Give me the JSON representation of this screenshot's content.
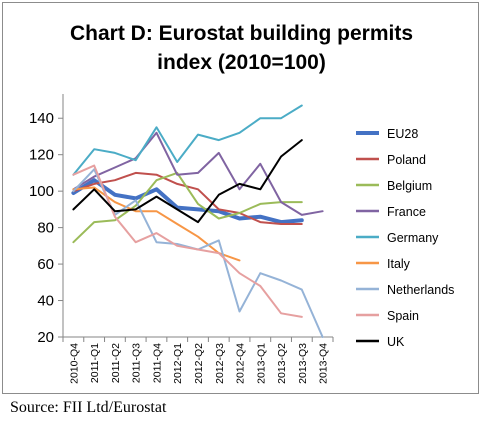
{
  "chart_data": {
    "type": "line",
    "title": "Chart D: Eurostat building permits",
    "subtitle": "index (2010=100)",
    "xlabel": "",
    "ylabel": "",
    "ylim": [
      20,
      150
    ],
    "yticks": [
      20,
      40,
      60,
      80,
      100,
      120,
      140
    ],
    "grid": false,
    "legend_position": "right",
    "x": [
      "2010-Q4",
      "2011-Q1",
      "2011-Q2",
      "2011-Q3",
      "2011-Q4",
      "2012-Q1",
      "2012-Q2",
      "2012-Q3",
      "2012-Q4",
      "2013-Q1",
      "2013-Q2",
      "2013-Q3",
      "2013-Q4"
    ],
    "series": [
      {
        "name": "EU28",
        "color": "#4472c4",
        "width": 4,
        "values": [
          99,
          106,
          98,
          96,
          101,
          91,
          90,
          89,
          85,
          86,
          83,
          84,
          null
        ]
      },
      {
        "name": "Poland",
        "color": "#c0504d",
        "width": 2,
        "values": [
          100,
          104,
          106,
          110,
          109,
          104,
          101,
          90,
          88,
          83,
          82,
          82,
          null
        ]
      },
      {
        "name": "Belgium",
        "color": "#9bbb59",
        "width": 2,
        "values": [
          72,
          83,
          84,
          92,
          106,
          110,
          93,
          85,
          88,
          93,
          94,
          94,
          null
        ]
      },
      {
        "name": "France",
        "color": "#8064a2",
        "width": 2,
        "values": [
          101,
          108,
          113,
          118,
          132,
          109,
          110,
          121,
          101,
          115,
          94,
          87,
          89
        ]
      },
      {
        "name": "Germany",
        "color": "#4bacc6",
        "width": 2,
        "values": [
          109,
          123,
          121,
          117,
          135,
          116,
          131,
          128,
          132,
          140,
          140,
          147,
          null
        ]
      },
      {
        "name": "Italy",
        "color": "#f79646",
        "width": 2,
        "values": [
          101,
          102,
          94,
          89,
          89,
          82,
          75,
          66,
          62,
          null,
          null,
          null,
          null
        ]
      },
      {
        "name": "Netherlands",
        "color": "#95b3d7",
        "width": 2,
        "values": [
          100,
          112,
          87,
          95,
          72,
          71,
          68,
          73,
          34,
          55,
          51,
          46,
          20
        ]
      },
      {
        "name": "Spain",
        "color": "#e6a0a0",
        "width": 2,
        "values": [
          109,
          114,
          86,
          72,
          77,
          70,
          68,
          66,
          55,
          48,
          33,
          31,
          null
        ]
      },
      {
        "name": "UK",
        "color": "#000000",
        "width": 2,
        "values": [
          90,
          101,
          89,
          90,
          97,
          90,
          83,
          98,
          104,
          101,
          119,
          128,
          null
        ]
      }
    ]
  },
  "source": "Source: FII Ltd/Eurostat"
}
